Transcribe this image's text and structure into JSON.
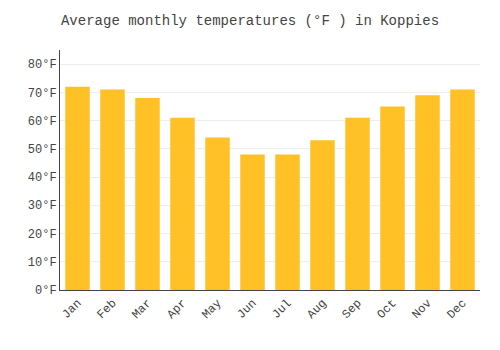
{
  "chart_data": {
    "type": "bar",
    "title": "Average monthly temperatures (°F ) in Koppies",
    "categories": [
      "Jan",
      "Feb",
      "Mar",
      "Apr",
      "May",
      "Jun",
      "Jul",
      "Aug",
      "Sep",
      "Oct",
      "Nov",
      "Dec"
    ],
    "values": [
      72,
      71,
      68,
      61,
      54,
      48,
      48,
      53,
      61,
      65,
      69,
      71
    ],
    "color": "#FFC125",
    "ylim": [
      0,
      85
    ],
    "yticks": [
      {
        "value": 0,
        "label": "0°F"
      },
      {
        "value": 10,
        "label": "10°F"
      },
      {
        "value": 20,
        "label": "20°F"
      },
      {
        "value": 30,
        "label": "30°F"
      },
      {
        "value": 40,
        "label": "40°F"
      },
      {
        "value": 50,
        "label": "50°F"
      },
      {
        "value": 60,
        "label": "60°F"
      },
      {
        "value": 70,
        "label": "70°F"
      },
      {
        "value": 80,
        "label": "80°F"
      }
    ],
    "grid": true
  }
}
